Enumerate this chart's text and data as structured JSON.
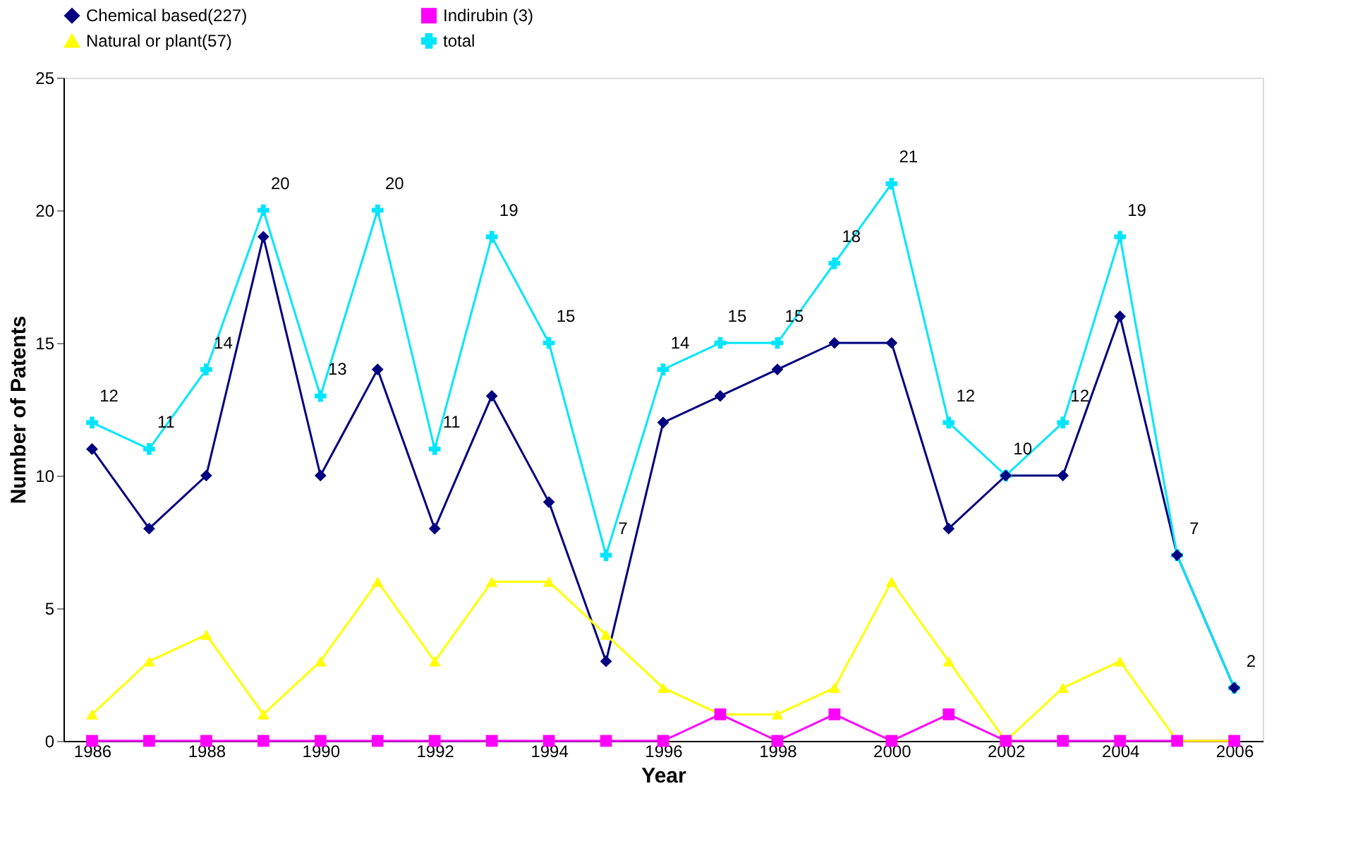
{
  "chart_data": {
    "type": "line",
    "xlabel": "Year",
    "ylabel": "Number of Patents",
    "categories": [
      "1986",
      null,
      "1988",
      null,
      "1990",
      null,
      "1992",
      null,
      "1994",
      null,
      "1996",
      null,
      "1998",
      null,
      "2000",
      null,
      "2002",
      null,
      "2004",
      null,
      "2006"
    ],
    "ylim": [
      0,
      25
    ],
    "yticks": [
      0,
      5,
      10,
      15,
      20,
      25
    ],
    "grid": false,
    "legend": "top",
    "line_style": "solid",
    "series": [
      {
        "name": "Chemical based(227)",
        "color": "#000080",
        "marker": "diamond",
        "values": [
          11,
          8,
          10,
          19,
          10,
          14,
          8,
          13,
          9,
          3,
          12,
          13,
          14,
          15,
          15,
          8,
          10,
          10,
          16,
          7,
          2
        ]
      },
      {
        "name": "Indirubin (3)",
        "color": "#ff00ff",
        "marker": "square",
        "values": [
          0,
          0,
          0,
          0,
          0,
          0,
          0,
          0,
          0,
          0,
          0,
          1,
          0,
          1,
          0,
          1,
          0,
          0,
          0,
          0,
          0
        ]
      },
      {
        "name": "Natural or plant(57)",
        "color": "#ffff00",
        "marker": "triangle",
        "values": [
          1,
          3,
          4,
          1,
          3,
          6,
          3,
          6,
          6,
          4,
          2,
          1,
          1,
          2,
          6,
          3,
          0,
          2,
          3,
          0,
          0
        ]
      },
      {
        "name": "total",
        "color": "#00e5ff",
        "marker": "cross",
        "values": [
          12,
          11,
          14,
          20,
          13,
          20,
          11,
          19,
          15,
          7,
          14,
          15,
          15,
          18,
          21,
          12,
          10,
          12,
          19,
          7,
          2
        ],
        "value_labels": [
          "12",
          "11",
          "14",
          "20",
          "13",
          "20",
          "11",
          "19",
          "15",
          "7",
          "14",
          "15",
          "15",
          "18",
          "21",
          "12",
          "10",
          "12",
          "19",
          "7",
          "2"
        ]
      }
    ]
  }
}
